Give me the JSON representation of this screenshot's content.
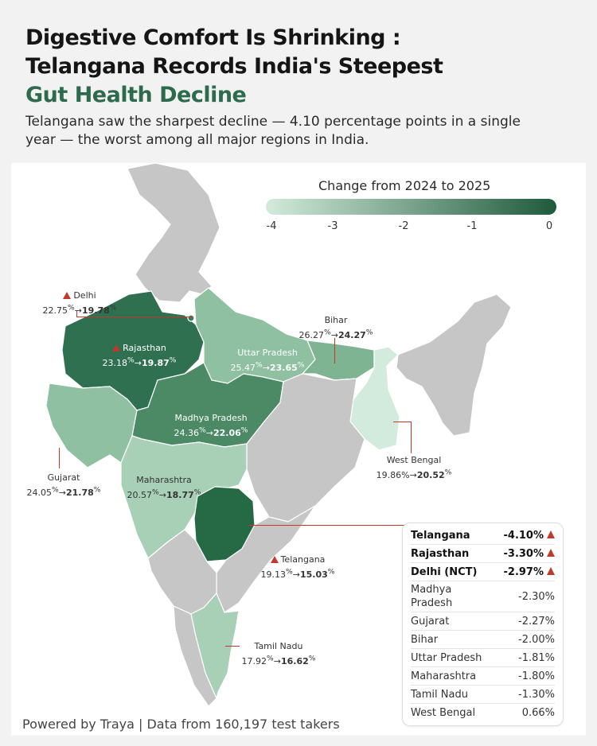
{
  "header": {
    "title_line1": "Digestive Comfort Is Shrinking :",
    "title_line2": "Telangana Records India's Steepest",
    "title_line3": "Gut Health Decline",
    "subtitle": "Telangana saw the sharpest decline — 4.10 percentage points in a single year — the worst among all major regions in India."
  },
  "legend": {
    "title": "Change from 2024 to 2025",
    "ticks": [
      "-4",
      "-3",
      "-2",
      "-1",
      "0"
    ],
    "color_low": "#d3ebdc",
    "color_high": "#1f5a3c"
  },
  "colors": {
    "accent": "#2e6b4c",
    "warning": "#c0392b",
    "unmapped": "#c6c6c6"
  },
  "regions": {
    "delhi": {
      "name": "Delhi",
      "from": "22.75",
      "to": "19.78",
      "warn": true
    },
    "rajasthan": {
      "name": "Rajasthan",
      "from": "23.18",
      "to": "19.87",
      "warn": true
    },
    "bihar": {
      "name": "Bihar",
      "from": "26.27",
      "to": "24.27"
    },
    "uttar_pradesh": {
      "name": "Uttar Pradesh",
      "from": "25.47",
      "to": "23.65"
    },
    "madhya_pradesh": {
      "name": "Madhya Pradesh",
      "from": "24.36",
      "to": "22.06"
    },
    "gujarat": {
      "name": "Gujarat",
      "from": "24.05",
      "to": "21.78"
    },
    "maharashtra": {
      "name": "Maharashtra",
      "from": "20.57",
      "to": "18.77"
    },
    "west_bengal": {
      "name": "West Bengal",
      "from": "19.86%",
      "to": "20.52"
    },
    "telangana": {
      "name": "Telangana",
      "from": "19.13",
      "to": "15.03",
      "warn": true
    },
    "tamil_nadu": {
      "name": "Tamil Nadu",
      "from": "17.92",
      "to": "16.62"
    }
  },
  "pct_sup": "%",
  "arrow": "→",
  "table": [
    {
      "name": "Telangana",
      "value": "-4.10%",
      "bold": true,
      "warn": true
    },
    {
      "name": "Rajasthan",
      "value": "-3.30%",
      "bold": true,
      "warn": true
    },
    {
      "name": "Delhi (NCT)",
      "value": "-2.97%",
      "bold": true,
      "warn": true
    },
    {
      "name": "Madhya Pradesh",
      "value": "-2.30%"
    },
    {
      "name": "Gujarat",
      "value": "-2.27%"
    },
    {
      "name": "Bihar",
      "value": "-2.00%"
    },
    {
      "name": "Uttar Pradesh",
      "value": "-1.81%"
    },
    {
      "name": "Maharashtra",
      "value": "-1.80%"
    },
    {
      "name": "Tamil Nadu",
      "value": "-1.30%"
    },
    {
      "name": "West Bengal",
      "value": "0.66%"
    }
  ],
  "footer": "Powered by Traya | Data from 160,197 test takers"
}
